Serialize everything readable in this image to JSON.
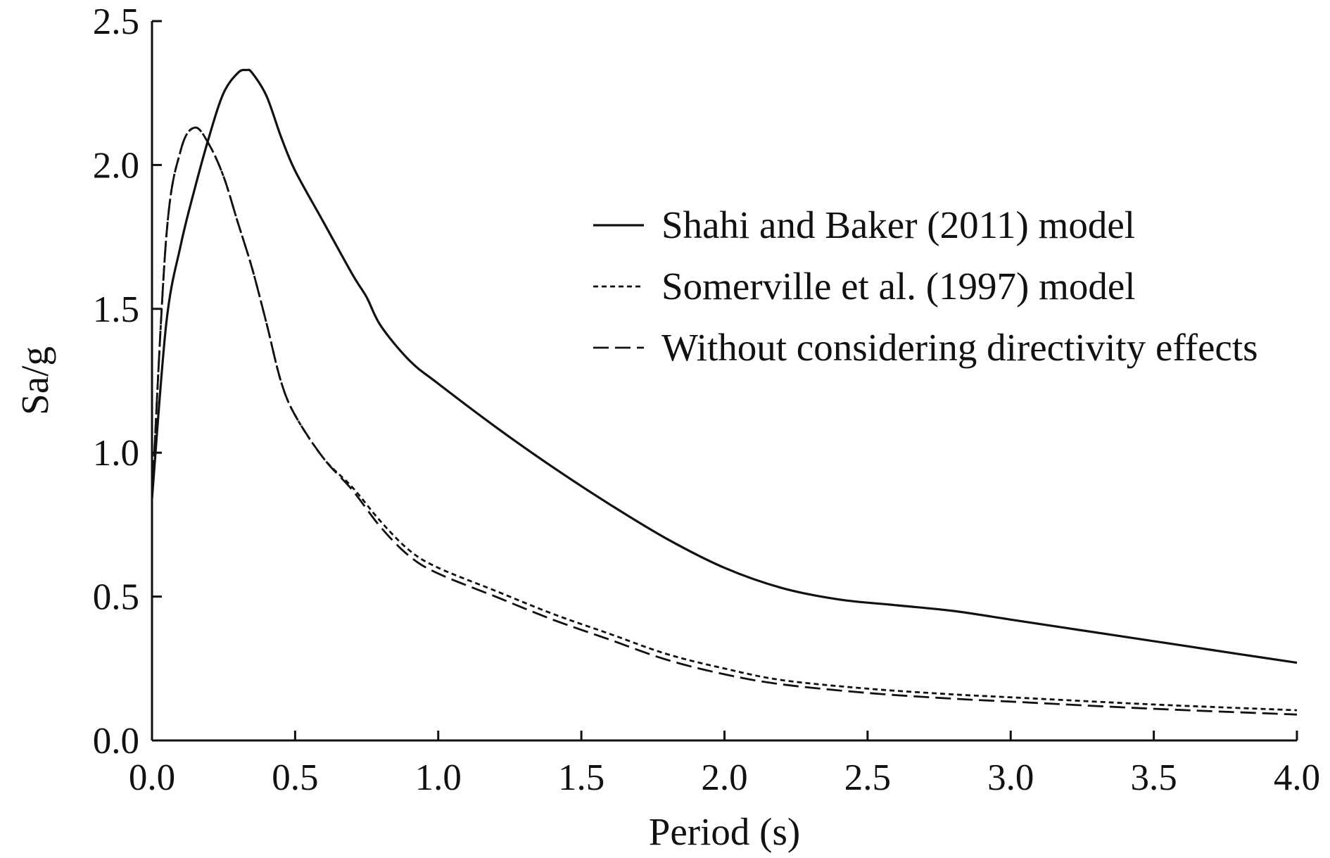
{
  "chart_data": {
    "type": "line",
    "title": "",
    "xlabel": "Period (s)",
    "ylabel": "Sa/g",
    "xlim": [
      0,
      4.0
    ],
    "ylim": [
      0,
      2.5
    ],
    "xticks": [
      "0.0",
      "0.5",
      "1.0",
      "1.5",
      "2.0",
      "2.5",
      "3.0",
      "3.5",
      "4.0"
    ],
    "yticks": [
      "0.0",
      "0.5",
      "1.0",
      "1.5",
      "2.0",
      "2.5"
    ],
    "grid": false,
    "legend_position": "right",
    "series": [
      {
        "name": "Shahi and Baker (2011) model",
        "style": "solid",
        "color": "#111111",
        "points": [
          [
            0.0,
            0.84
          ],
          [
            0.05,
            1.45
          ],
          [
            0.1,
            1.72
          ],
          [
            0.15,
            1.92
          ],
          [
            0.2,
            2.1
          ],
          [
            0.25,
            2.25
          ],
          [
            0.3,
            2.32
          ],
          [
            0.33,
            2.33
          ],
          [
            0.35,
            2.32
          ],
          [
            0.4,
            2.24
          ],
          [
            0.45,
            2.1
          ],
          [
            0.5,
            1.98
          ],
          [
            0.6,
            1.8
          ],
          [
            0.7,
            1.62
          ],
          [
            0.75,
            1.54
          ],
          [
            0.8,
            1.44
          ],
          [
            0.9,
            1.32
          ],
          [
            1.0,
            1.24
          ],
          [
            1.2,
            1.09
          ],
          [
            1.4,
            0.95
          ],
          [
            1.6,
            0.82
          ],
          [
            1.8,
            0.7
          ],
          [
            2.0,
            0.6
          ],
          [
            2.2,
            0.53
          ],
          [
            2.4,
            0.49
          ],
          [
            2.6,
            0.47
          ],
          [
            2.8,
            0.45
          ],
          [
            3.0,
            0.42
          ],
          [
            3.2,
            0.39
          ],
          [
            3.4,
            0.36
          ],
          [
            3.6,
            0.33
          ],
          [
            3.8,
            0.3
          ],
          [
            4.0,
            0.27
          ]
        ]
      },
      {
        "name": "Somerville et al. (1997) model",
        "style": "dotted",
        "color": "#111111",
        "points": [
          [
            0.0,
            0.84
          ],
          [
            0.05,
            1.75
          ],
          [
            0.1,
            2.05
          ],
          [
            0.15,
            2.13
          ],
          [
            0.2,
            2.07
          ],
          [
            0.25,
            1.96
          ],
          [
            0.3,
            1.8
          ],
          [
            0.35,
            1.64
          ],
          [
            0.4,
            1.45
          ],
          [
            0.45,
            1.25
          ],
          [
            0.5,
            1.13
          ],
          [
            0.6,
            0.98
          ],
          [
            0.7,
            0.88
          ],
          [
            0.8,
            0.76
          ],
          [
            0.9,
            0.66
          ],
          [
            1.0,
            0.6
          ],
          [
            1.2,
            0.52
          ],
          [
            1.4,
            0.44
          ],
          [
            1.6,
            0.37
          ],
          [
            1.8,
            0.3
          ],
          [
            2.0,
            0.25
          ],
          [
            2.2,
            0.21
          ],
          [
            2.5,
            0.18
          ],
          [
            2.8,
            0.16
          ],
          [
            3.0,
            0.15
          ],
          [
            3.5,
            0.125
          ],
          [
            4.0,
            0.105
          ]
        ]
      },
      {
        "name": "Without considering directivity effects",
        "style": "dashed",
        "color": "#111111",
        "points": [
          [
            0.0,
            0.84
          ],
          [
            0.05,
            1.75
          ],
          [
            0.1,
            2.05
          ],
          [
            0.15,
            2.13
          ],
          [
            0.2,
            2.07
          ],
          [
            0.25,
            1.96
          ],
          [
            0.3,
            1.8
          ],
          [
            0.35,
            1.64
          ],
          [
            0.4,
            1.45
          ],
          [
            0.45,
            1.25
          ],
          [
            0.5,
            1.13
          ],
          [
            0.6,
            0.98
          ],
          [
            0.7,
            0.87
          ],
          [
            0.8,
            0.74
          ],
          [
            0.9,
            0.64
          ],
          [
            1.0,
            0.58
          ],
          [
            1.2,
            0.5
          ],
          [
            1.4,
            0.42
          ],
          [
            1.6,
            0.35
          ],
          [
            1.8,
            0.28
          ],
          [
            2.0,
            0.23
          ],
          [
            2.2,
            0.195
          ],
          [
            2.5,
            0.165
          ],
          [
            2.8,
            0.145
          ],
          [
            3.0,
            0.135
          ],
          [
            3.5,
            0.11
          ],
          [
            4.0,
            0.09
          ]
        ]
      }
    ]
  }
}
